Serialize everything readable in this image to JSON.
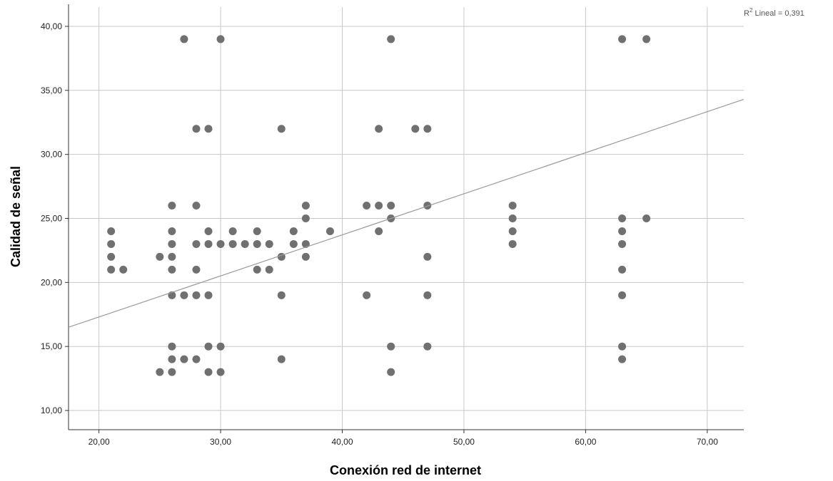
{
  "chart_data": {
    "type": "scatter",
    "xlabel": "Conexión red de internet",
    "ylabel": "Calidad de señal",
    "xlim": [
      17.5,
      73
    ],
    "ylim": [
      8.5,
      41.5
    ],
    "x_ticks": [
      "20,00",
      "30,00",
      "40,00",
      "50,00",
      "60,00",
      "70,00"
    ],
    "y_ticks": [
      "10,00",
      "15,00",
      "20,00",
      "25,00",
      "30,00",
      "35,00",
      "40,00"
    ],
    "x_tick_values": [
      20,
      30,
      40,
      50,
      60,
      70
    ],
    "y_tick_values": [
      10,
      15,
      20,
      25,
      30,
      35,
      40
    ],
    "grid": true,
    "marker_color": "#707070",
    "fit_line_color": "#9a9a9a",
    "fit_line": {
      "type": "linear",
      "label_prefix": "R",
      "label_superscript": "2",
      "label_suffix": " Lineal = 0,391",
      "points": [
        [
          17.5,
          16.5
        ],
        [
          73,
          34.3
        ]
      ]
    },
    "points": [
      [
        21,
        24
      ],
      [
        21,
        23
      ],
      [
        21,
        22
      ],
      [
        21,
        21
      ],
      [
        22,
        21
      ],
      [
        25,
        22
      ],
      [
        25,
        13
      ],
      [
        26,
        26
      ],
      [
        26,
        24
      ],
      [
        26,
        23
      ],
      [
        26,
        22
      ],
      [
        26,
        21
      ],
      [
        26,
        19
      ],
      [
        26,
        15
      ],
      [
        26,
        14
      ],
      [
        26,
        13
      ],
      [
        27,
        39
      ],
      [
        27,
        19
      ],
      [
        27,
        14
      ],
      [
        28,
        32
      ],
      [
        28,
        26
      ],
      [
        28,
        23
      ],
      [
        28,
        21
      ],
      [
        28,
        19
      ],
      [
        28,
        14
      ],
      [
        29,
        32
      ],
      [
        29,
        24
      ],
      [
        29,
        23
      ],
      [
        29,
        19
      ],
      [
        29,
        15
      ],
      [
        29,
        13
      ],
      [
        30,
        39
      ],
      [
        30,
        23
      ],
      [
        30,
        15
      ],
      [
        30,
        13
      ],
      [
        31,
        24
      ],
      [
        31,
        23
      ],
      [
        32,
        23
      ],
      [
        33,
        24
      ],
      [
        33,
        23
      ],
      [
        33,
        21
      ],
      [
        34,
        23
      ],
      [
        34,
        21
      ],
      [
        35,
        32
      ],
      [
        35,
        22
      ],
      [
        35,
        19
      ],
      [
        35,
        14
      ],
      [
        36,
        24
      ],
      [
        36,
        23
      ],
      [
        37,
        26
      ],
      [
        37,
        25
      ],
      [
        37,
        23
      ],
      [
        37,
        22
      ],
      [
        39,
        24
      ],
      [
        42,
        26
      ],
      [
        42,
        19
      ],
      [
        43,
        32
      ],
      [
        43,
        26
      ],
      [
        43,
        24
      ],
      [
        44,
        39
      ],
      [
        44,
        26
      ],
      [
        44,
        25
      ],
      [
        44,
        15
      ],
      [
        44,
        13
      ],
      [
        46,
        32
      ],
      [
        47,
        32
      ],
      [
        47,
        26
      ],
      [
        47,
        22
      ],
      [
        47,
        19
      ],
      [
        47,
        15
      ],
      [
        54,
        26
      ],
      [
        54,
        25
      ],
      [
        54,
        24
      ],
      [
        54,
        23
      ],
      [
        63,
        39
      ],
      [
        63,
        25
      ],
      [
        63,
        24
      ],
      [
        63,
        23
      ],
      [
        63,
        21
      ],
      [
        63,
        19
      ],
      [
        63,
        15
      ],
      [
        63,
        14
      ],
      [
        65,
        39
      ],
      [
        65,
        25
      ]
    ]
  }
}
